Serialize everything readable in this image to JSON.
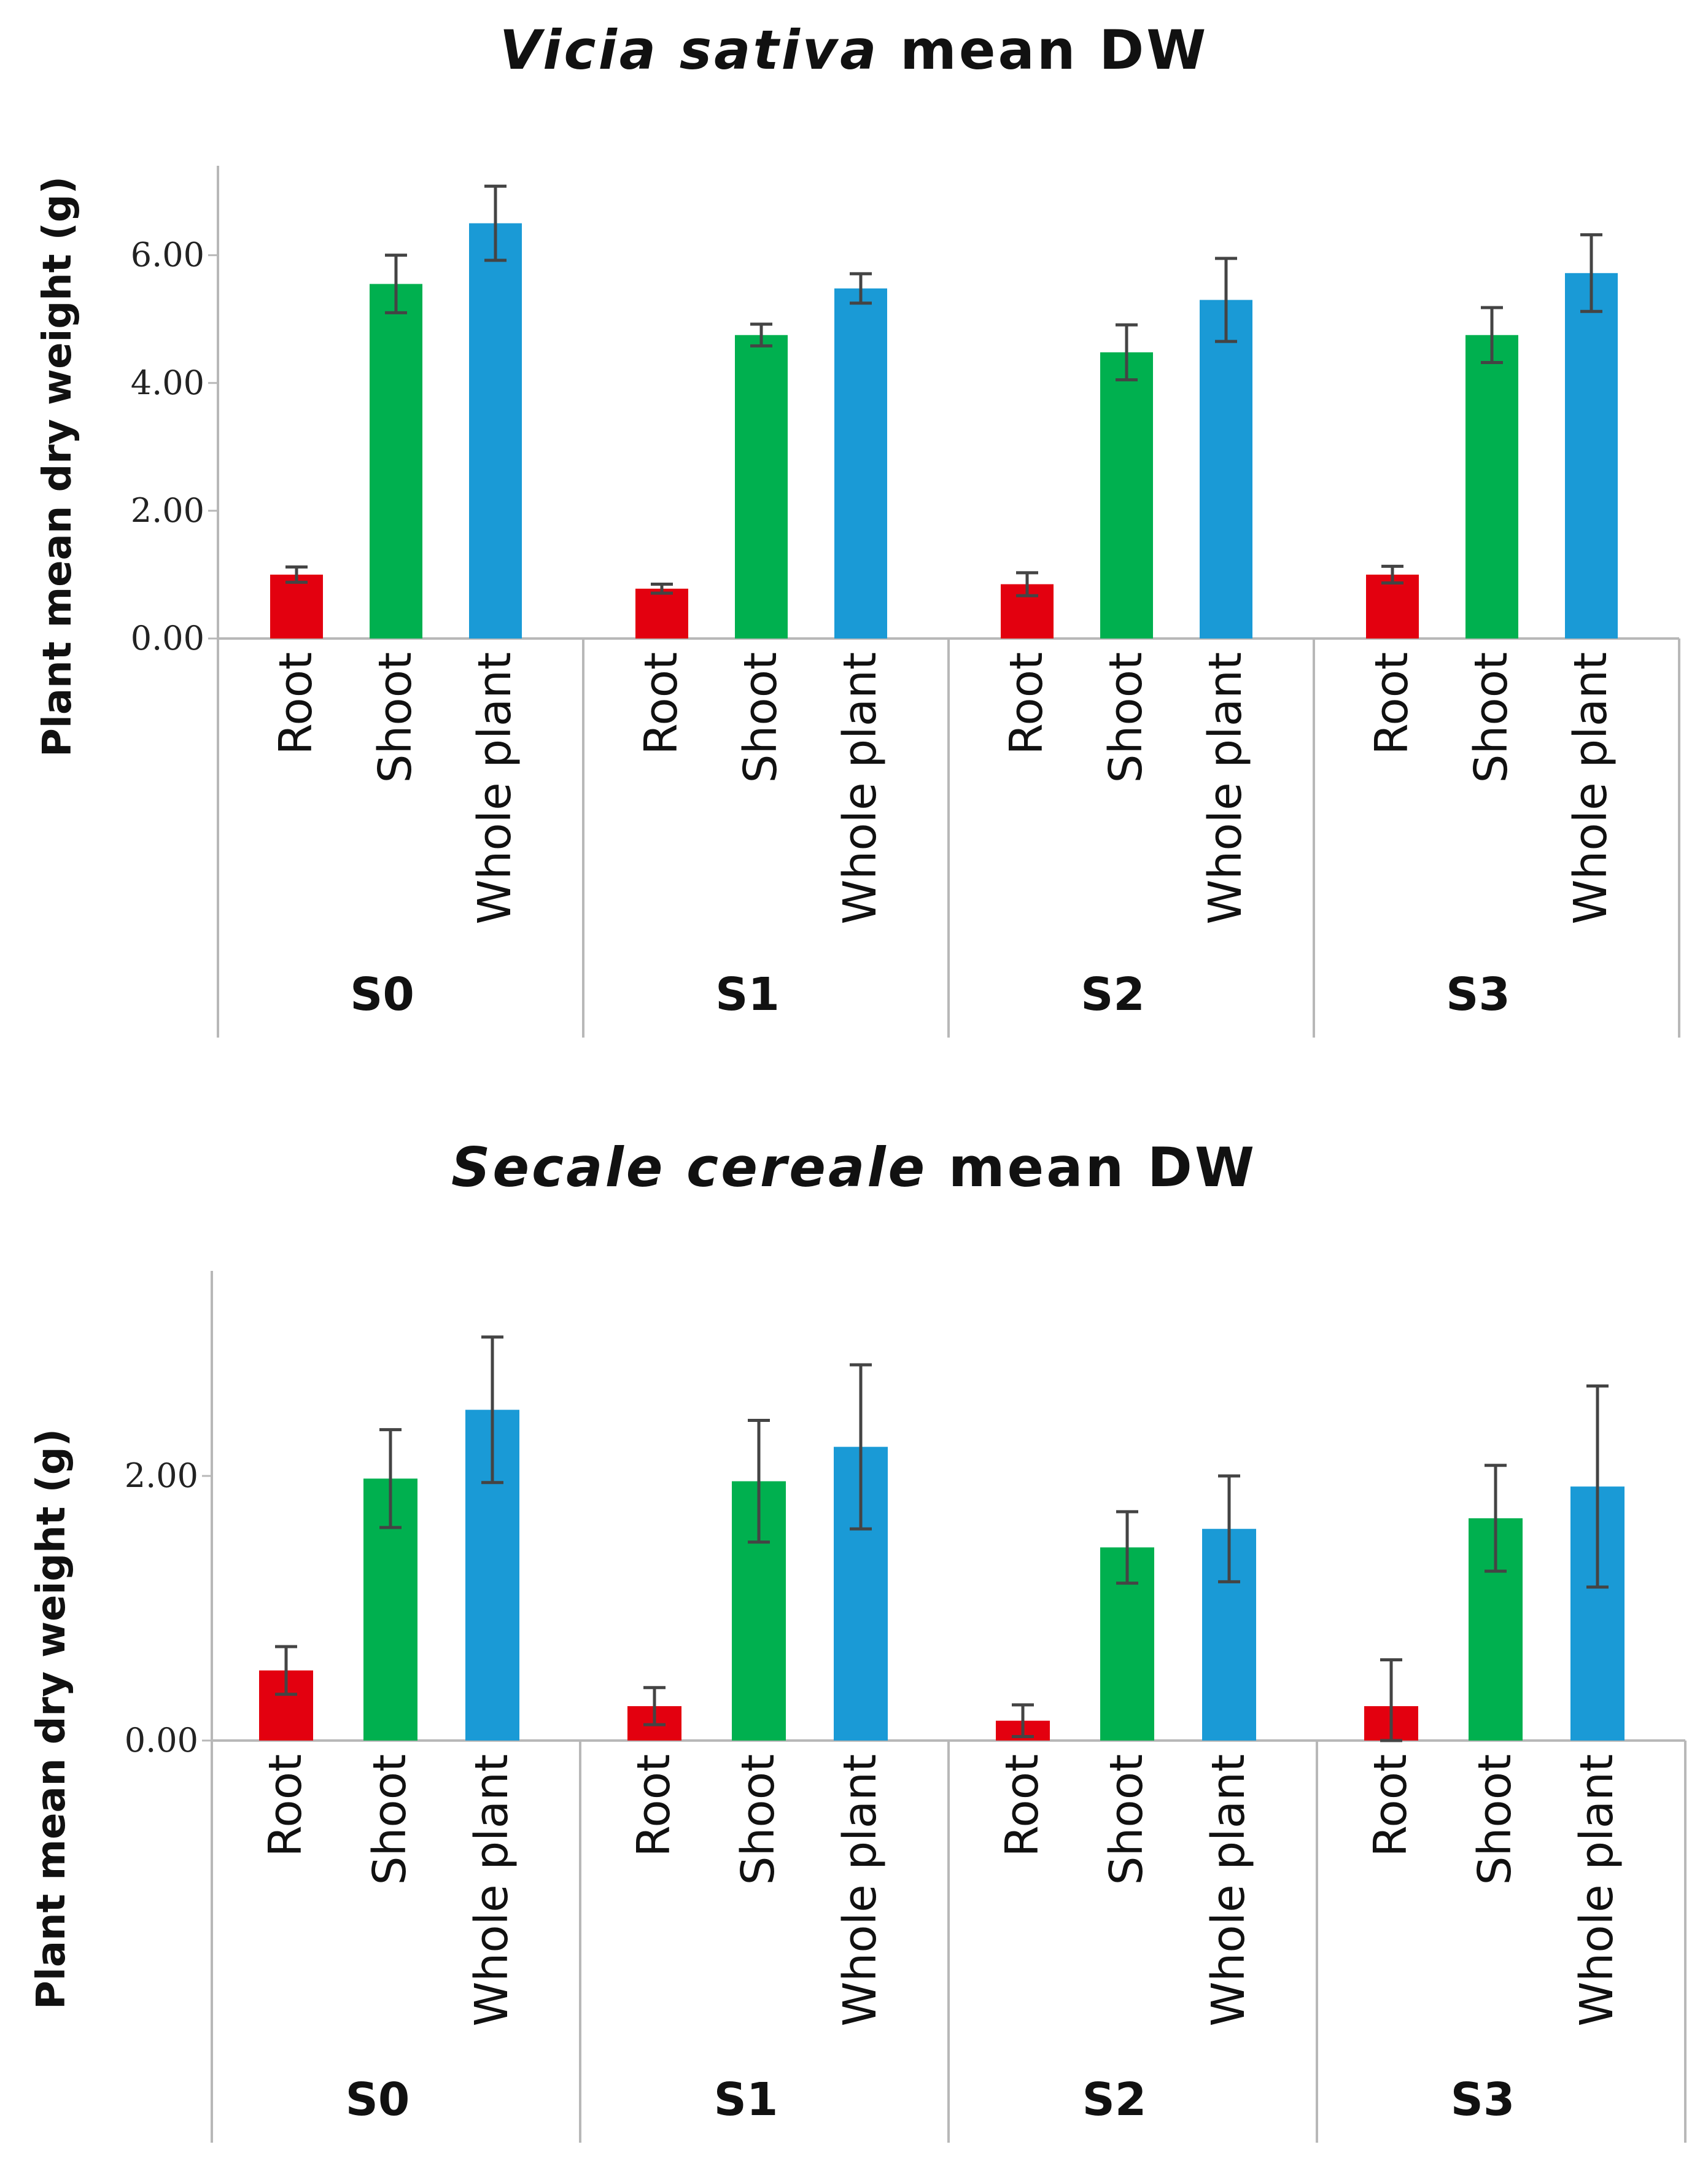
{
  "chart_data": [
    {
      "type": "bar",
      "title_italic": "Vicia sativa",
      "title_rest": "mean DW",
      "ylabel": "Plant mean dry weight (g)",
      "yticks": [
        "0.00",
        "2.00",
        "4.00",
        "6.00"
      ],
      "ytick_values": [
        0,
        2,
        4,
        6
      ],
      "ylim": [
        0,
        7.4
      ],
      "groups": [
        "S0",
        "S1",
        "S2",
        "S3"
      ],
      "categories": [
        "Root",
        "Shoot",
        "Whole plant"
      ],
      "colors": [
        "#e3000f",
        "#00b04f",
        "#1a9ad6"
      ],
      "values": [
        [
          1.0,
          5.55,
          6.5
        ],
        [
          0.78,
          4.75,
          5.48
        ],
        [
          0.85,
          4.48,
          5.3
        ],
        [
          1.0,
          4.75,
          5.72
        ]
      ],
      "errors": [
        [
          0.12,
          0.45,
          0.58
        ],
        [
          0.07,
          0.17,
          0.23
        ],
        [
          0.18,
          0.43,
          0.65
        ],
        [
          0.13,
          0.43,
          0.6
        ]
      ],
      "grid": false,
      "legend": "none"
    },
    {
      "type": "bar",
      "title_italic": "Secale cereale",
      "title_rest": "mean DW",
      "ylabel": "Plant mean dry weight (g)",
      "yticks": [
        "0.00",
        "2.00"
      ],
      "ytick_values": [
        0,
        2
      ],
      "ylim": [
        0,
        3.55
      ],
      "groups": [
        "S0",
        "S1",
        "S2",
        "S3"
      ],
      "categories": [
        "Root",
        "Shoot",
        "Whole plant"
      ],
      "colors": [
        "#e3000f",
        "#00b04f",
        "#1a9ad6"
      ],
      "values": [
        [
          0.53,
          1.98,
          2.5
        ],
        [
          0.26,
          1.96,
          2.22
        ],
        [
          0.15,
          1.46,
          1.6
        ],
        [
          0.26,
          1.68,
          1.92
        ]
      ],
      "errors": [
        [
          0.18,
          0.37,
          0.55
        ],
        [
          0.14,
          0.46,
          0.62
        ],
        [
          0.12,
          0.27,
          0.4
        ],
        [
          0.35,
          0.4,
          0.76
        ]
      ],
      "grid": false,
      "legend": "none"
    }
  ]
}
